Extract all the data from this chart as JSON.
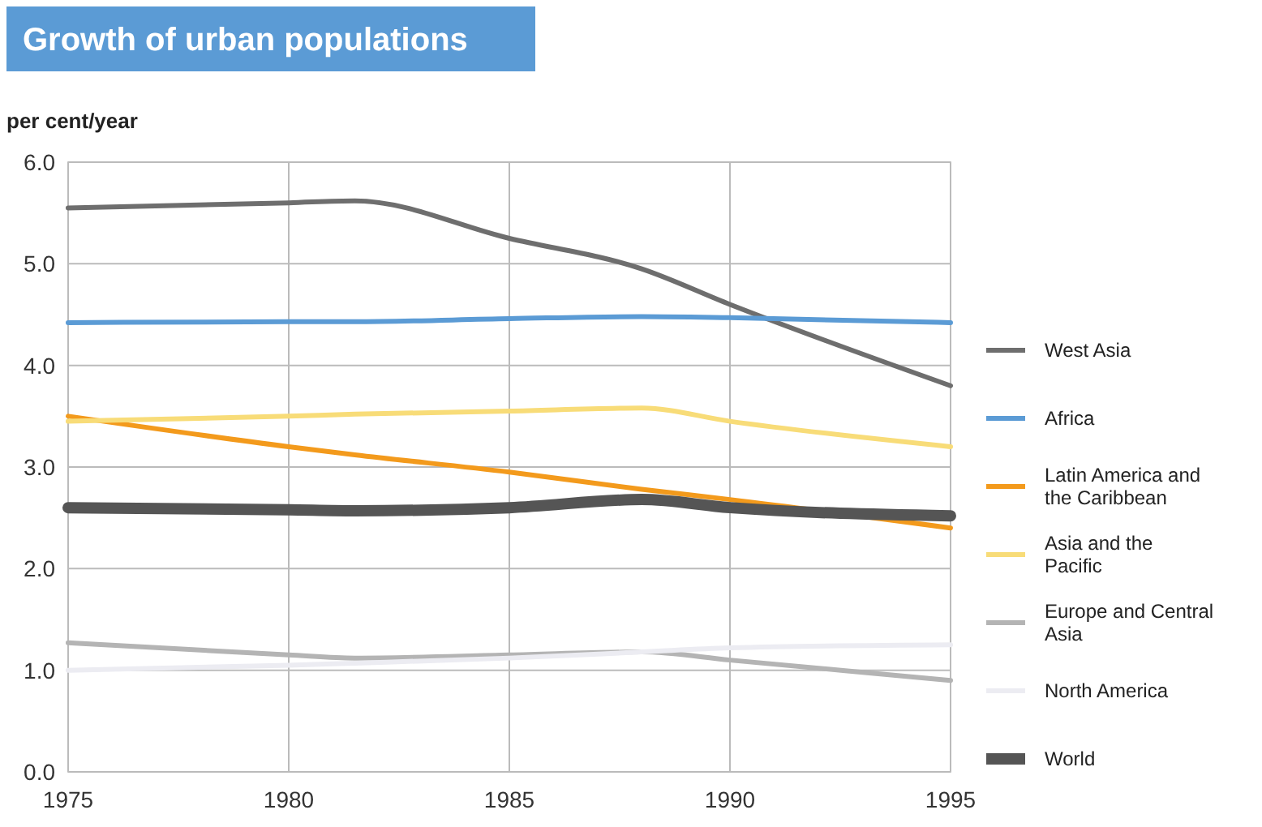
{
  "chart_data": {
    "type": "line",
    "title": "Growth of urban populations",
    "ylabel": "per cent/year",
    "x": [
      1975,
      1980,
      1981.5,
      1985,
      1988,
      1990,
      1995
    ],
    "series": [
      {
        "name": "West Asia",
        "color": "#6e6e6e",
        "values": [
          5.55,
          5.6,
          5.62,
          5.25,
          4.95,
          4.6,
          3.8
        ]
      },
      {
        "name": "Africa",
        "color": "#5b9bd5",
        "values": [
          4.42,
          4.43,
          4.43,
          4.46,
          4.48,
          4.47,
          4.42
        ]
      },
      {
        "name": "Latin America and the Caribbean",
        "color": "#f39a1c",
        "values": [
          3.5,
          3.2,
          3.12,
          2.95,
          2.78,
          2.68,
          2.4
        ]
      },
      {
        "name": "Asia and the Pacific",
        "color": "#f8dc78",
        "values": [
          3.45,
          3.5,
          3.52,
          3.55,
          3.58,
          3.45,
          3.2
        ]
      },
      {
        "name": "Europe and Central Asia",
        "color": "#b4b4b4",
        "values": [
          1.27,
          1.15,
          1.12,
          1.15,
          1.18,
          1.1,
          0.9
        ]
      },
      {
        "name": "North America",
        "color": "#ececf2",
        "values": [
          1.0,
          1.05,
          1.07,
          1.12,
          1.18,
          1.22,
          1.25
        ]
      },
      {
        "name": "World",
        "color": "#555555",
        "values": [
          2.6,
          2.58,
          2.57,
          2.6,
          2.68,
          2.6,
          2.52
        ]
      }
    ],
    "xlim": [
      1975,
      1995
    ],
    "xticks": [
      1975,
      1980,
      1985,
      1990,
      1995
    ],
    "ylim": [
      0,
      6
    ],
    "yticks": [
      {
        "value": 0,
        "label": "0.0"
      },
      {
        "value": 1,
        "label": "1.0"
      },
      {
        "value": 2,
        "label": "2.0"
      },
      {
        "value": 3,
        "label": "3.0"
      },
      {
        "value": 4,
        "label": "4.0"
      },
      {
        "value": 5,
        "label": "5.0"
      },
      {
        "value": 6,
        "label": "6.0"
      }
    ],
    "grid": true,
    "legend": "right",
    "marker": "none",
    "line_style": "solid"
  }
}
